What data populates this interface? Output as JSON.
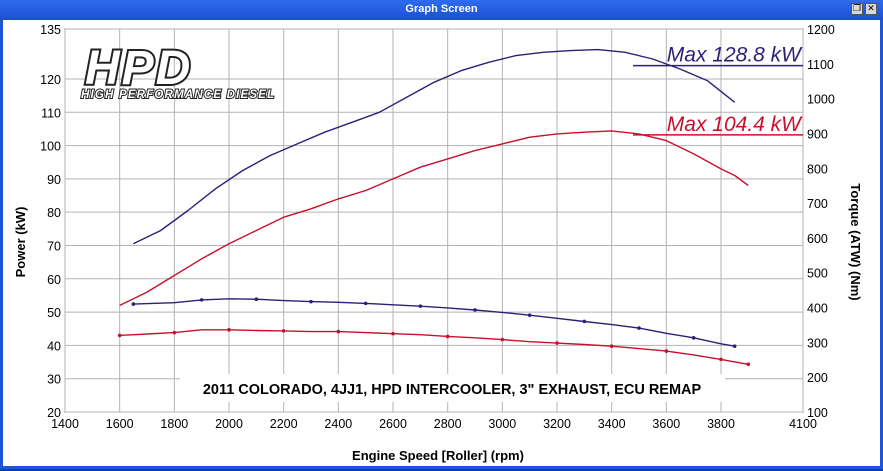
{
  "window": {
    "title": "Graph Screen",
    "restore_glyph": "❐",
    "close_glyph": "✕"
  },
  "logo": {
    "main": "HPD",
    "sub": "HIGH PERFORMANCE DIESEL"
  },
  "chart_data": {
    "type": "line",
    "xlabel": "Engine Speed [Roller] (rpm)",
    "ylabel": "Power (kW)",
    "y2label": "Torque (ATW) (Nm)",
    "xlim": [
      1400,
      4100
    ],
    "ylim": [
      20,
      135
    ],
    "y2lim": [
      100,
      1200
    ],
    "xticks": [
      1400,
      1600,
      1800,
      2000,
      2200,
      2400,
      2600,
      2800,
      3000,
      3200,
      3400,
      3600,
      3800,
      4100
    ],
    "yticks": [
      20,
      30,
      40,
      50,
      60,
      70,
      80,
      90,
      100,
      110,
      120,
      135
    ],
    "y2ticks": [
      100,
      200,
      300,
      400,
      500,
      600,
      700,
      800,
      900,
      1000,
      1100,
      1200
    ],
    "grid": true,
    "annotations": [
      {
        "text": "Max 128.8 kW",
        "color": "#2d1f7a"
      },
      {
        "text": "Max 104.4 kW",
        "color": "#c8102e"
      },
      {
        "text": "2011 COLORADO, 4JJ1, HPD INTERCOOLER, 3\" EXHAUST, ECU REMAP"
      }
    ],
    "series": [
      {
        "color": "#2d1f7a",
        "axis": "power",
        "x": [
          1650,
          1750,
          1850,
          1950,
          2050,
          2150,
          2250,
          2350,
          2450,
          2550,
          2650,
          2750,
          2850,
          2950,
          3050,
          3150,
          3250,
          3350,
          3450,
          3550,
          3650,
          3750,
          3850
        ],
        "y": [
          70.5,
          74.5,
          80.5,
          87,
          92.5,
          97,
          100.5,
          104,
          107,
          110,
          114.5,
          119,
          122.5,
          125,
          127,
          128,
          128.5,
          128.8,
          128,
          126,
          123,
          119.5,
          113
        ]
      },
      {
        "color": "#c8102e",
        "axis": "power",
        "x": [
          1600,
          1700,
          1800,
          1900,
          2000,
          2100,
          2200,
          2300,
          2400,
          2500,
          2600,
          2700,
          2800,
          2900,
          3000,
          3100,
          3200,
          3300,
          3400,
          3500,
          3600,
          3700,
          3800,
          3850,
          3900
        ],
        "y": [
          52,
          56,
          61,
          66,
          70.5,
          74.5,
          78.5,
          81,
          84,
          86.5,
          90,
          93.5,
          96,
          98.5,
          100.5,
          102.5,
          103.5,
          104,
          104.4,
          103.5,
          101.5,
          97.5,
          93,
          91,
          88
        ]
      },
      {
        "color": "#2d1f7a",
        "axis": "torque",
        "x": [
          1650,
          1800,
          1900,
          2000,
          2100,
          2200,
          2300,
          2400,
          2500,
          2600,
          2700,
          2800,
          2900,
          3000,
          3100,
          3200,
          3300,
          3400,
          3500,
          3600,
          3700,
          3800,
          3850
        ],
        "y": [
          410,
          414,
          422,
          425,
          424,
          420,
          417,
          415,
          412,
          408,
          404,
          399,
          393,
          386,
          378,
          369,
          360,
          351,
          341,
          326,
          313,
          296,
          289
        ]
      },
      {
        "color": "#c8102e",
        "axis": "torque",
        "x": [
          1600,
          1700,
          1800,
          1900,
          2000,
          2100,
          2200,
          2300,
          2400,
          2500,
          2600,
          2700,
          2800,
          2900,
          3000,
          3100,
          3200,
          3300,
          3400,
          3500,
          3600,
          3700,
          3800,
          3850,
          3900
        ],
        "y": [
          320,
          324,
          328,
          336,
          336,
          334,
          333,
          331,
          331,
          328,
          325,
          322,
          317,
          313,
          308,
          302,
          298,
          294,
          289,
          282,
          275,
          264,
          251,
          244,
          237
        ]
      }
    ]
  }
}
